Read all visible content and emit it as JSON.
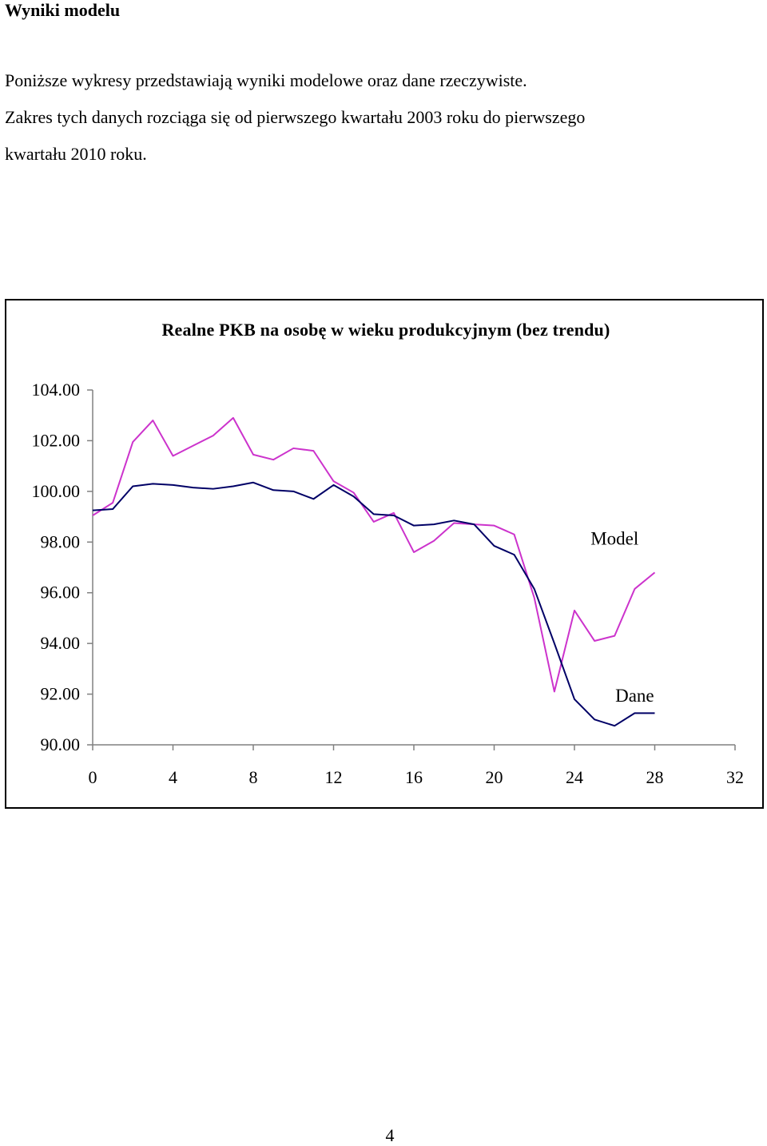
{
  "document": {
    "heading": "Wyniki modelu",
    "intro_lines": [
      "Poniższe wykresy przedstawiają wyniki modelowe oraz dane rzeczywiste.",
      "Zakres tych danych rozciąga się od pierwszego kwartału 2003 roku do pierwszego",
      "kwartału 2010 roku."
    ],
    "page_number": "4"
  },
  "chart_data": {
    "type": "line",
    "title": "Realne PKB na osobę w wieku produkcyjnym (bez trendu)",
    "xlabel": "",
    "ylabel": "",
    "xlim": [
      0,
      32
    ],
    "ylim": [
      90,
      104
    ],
    "x_ticks": [
      "0",
      "4",
      "8",
      "12",
      "16",
      "20",
      "24",
      "28",
      "32"
    ],
    "y_ticks": [
      "104.00",
      "102.00",
      "100.00",
      "98.00",
      "96.00",
      "94.00",
      "92.00",
      "90.00"
    ],
    "grid": false,
    "x": [
      0,
      1,
      2,
      3,
      4,
      5,
      6,
      7,
      8,
      9,
      10,
      11,
      12,
      13,
      14,
      15,
      16,
      17,
      18,
      19,
      20,
      21,
      22,
      23,
      24,
      25,
      26,
      27,
      28
    ],
    "series": [
      {
        "name": "Model",
        "color": "#cc33cc",
        "values": [
          99.05,
          99.55,
          101.95,
          102.8,
          101.4,
          101.8,
          102.2,
          102.9,
          101.45,
          101.25,
          101.7,
          101.6,
          100.4,
          99.95,
          98.8,
          99.15,
          97.6,
          98.05,
          98.75,
          98.7,
          98.65,
          98.3,
          95.8,
          92.1,
          95.3,
          94.1,
          94.3,
          96.15,
          96.8
        ]
      },
      {
        "name": "Dane",
        "color": "#000066",
        "values": [
          99.25,
          99.3,
          100.2,
          100.3,
          100.25,
          100.15,
          100.1,
          100.2,
          100.35,
          100.05,
          100.0,
          99.7,
          100.25,
          99.8,
          99.1,
          99.05,
          98.65,
          98.7,
          98.85,
          98.7,
          97.85,
          97.5,
          96.15,
          94.0,
          91.8,
          91.0,
          90.75,
          91.25,
          91.25
        ]
      }
    ],
    "annotations": [
      {
        "text": "Model",
        "x": 26,
        "y": 97.9
      },
      {
        "text": "Dane",
        "x": 27,
        "y": 91.7
      }
    ]
  }
}
